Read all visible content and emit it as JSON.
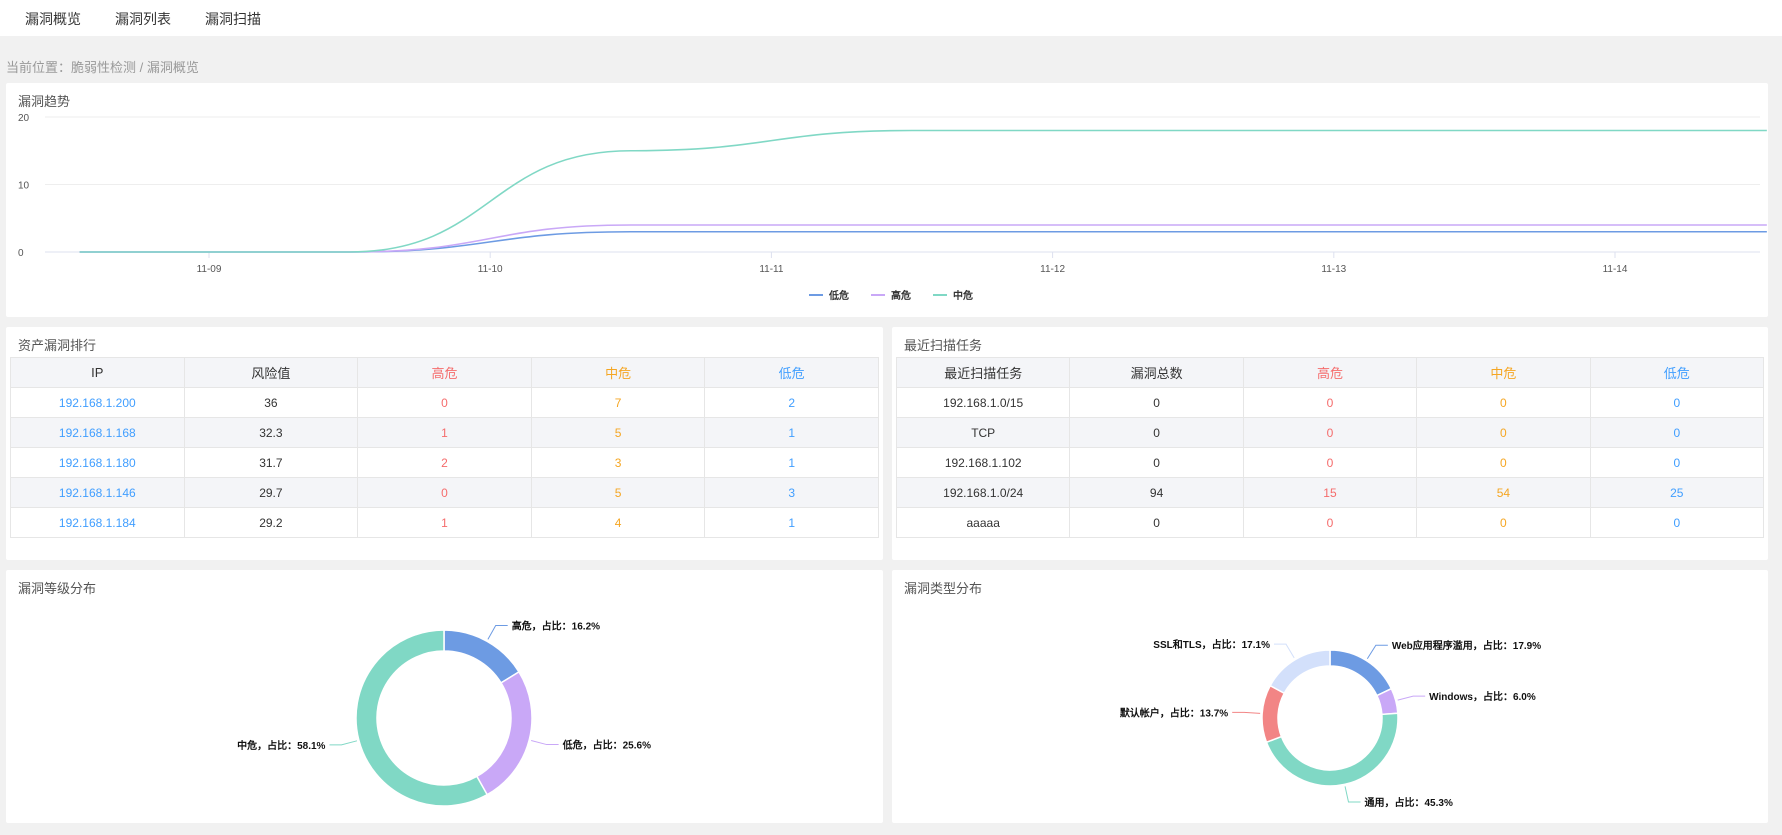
{
  "nav": {
    "items": [
      "漏洞概览",
      "漏洞列表",
      "漏洞扫描"
    ]
  },
  "breadcrumb": "当前位置：脆弱性检测 / 漏洞概览",
  "colors": {
    "low": "#6d9be3",
    "high": "#c9a8f7",
    "mid": "#80d8c5",
    "red": "#f28585",
    "lightblue": "#d3e0fb"
  },
  "trend": {
    "title": "漏洞趋势"
  },
  "chart_data": [
    {
      "type": "line",
      "title": "漏洞趋势",
      "x_ticks": [
        "11-09",
        "11-10",
        "11-11",
        "11-12",
        "11-13",
        "11-14"
      ],
      "y_ticks": [
        0,
        10,
        20
      ],
      "ylim": [
        0,
        20
      ],
      "legend_position": "bottom-center",
      "x_days": [
        -0.46,
        0.5,
        1.5,
        2.5,
        3.5,
        4.5,
        5.54
      ],
      "series": [
        {
          "name": "低危",
          "color": "#6d9be3",
          "values": [
            0,
            0,
            3,
            3,
            3,
            3,
            3
          ]
        },
        {
          "name": "高危",
          "color": "#c9a8f7",
          "values": [
            0,
            0,
            4,
            4,
            4,
            4,
            4
          ]
        },
        {
          "name": "中危",
          "color": "#80d8c5",
          "values": [
            0,
            0,
            15,
            18,
            18,
            18,
            18
          ]
        }
      ]
    },
    {
      "type": "pie",
      "title": "漏洞等级分布",
      "slices": [
        {
          "name": "高危",
          "value": 16.2,
          "label": "高危，占比：16.2%",
          "color": "#6d9be3"
        },
        {
          "name": "低危",
          "value": 25.6,
          "label": "低危，占比：25.6%",
          "color": "#c9a8f7"
        },
        {
          "name": "中危",
          "value": 58.1,
          "label": "中危，占比：58.1%",
          "color": "#80d8c5"
        }
      ]
    },
    {
      "type": "pie",
      "title": "漏洞类型分布",
      "slices": [
        {
          "name": "Web应用程序滥用",
          "value": 17.9,
          "label": "Web应用程序滥用，占比：17.9%",
          "color": "#6d9be3"
        },
        {
          "name": "Windows",
          "value": 6.0,
          "label": "Windows，占比：6.0%",
          "color": "#c9a8f7"
        },
        {
          "name": "通用",
          "value": 45.3,
          "label": "通用，占比：45.3%",
          "color": "#80d8c5"
        },
        {
          "name": "默认帐户",
          "value": 13.7,
          "label": "默认帐户，占比：13.7%",
          "color": "#f28585"
        },
        {
          "name": "SSL和TLS",
          "value": 17.1,
          "label": "SSL和TLS，占比：17.1%",
          "color": "#d3e0fb"
        }
      ]
    }
  ],
  "asset": {
    "title": "资产漏洞排行",
    "headers": [
      "IP",
      "风险值",
      "高危",
      "中危",
      "低危"
    ],
    "rows": [
      [
        "192.168.1.200",
        "36",
        "0",
        "7",
        "2"
      ],
      [
        "192.168.1.168",
        "32.3",
        "1",
        "5",
        "1"
      ],
      [
        "192.168.1.180",
        "31.7",
        "2",
        "3",
        "1"
      ],
      [
        "192.168.1.146",
        "29.7",
        "0",
        "5",
        "3"
      ],
      [
        "192.168.1.184",
        "29.2",
        "1",
        "4",
        "1"
      ]
    ]
  },
  "scan": {
    "title": "最近扫描任务",
    "headers": [
      "最近扫描任务",
      "漏洞总数",
      "高危",
      "中危",
      "低危"
    ],
    "rows": [
      [
        "192.168.1.0/15",
        "0",
        "0",
        "0",
        "0"
      ],
      [
        "TCP",
        "0",
        "0",
        "0",
        "0"
      ],
      [
        "192.168.1.102",
        "0",
        "0",
        "0",
        "0"
      ],
      [
        "192.168.1.0/24",
        "94",
        "15",
        "54",
        "25"
      ],
      [
        "aaaaa",
        "0",
        "0",
        "0",
        "0"
      ]
    ]
  }
}
